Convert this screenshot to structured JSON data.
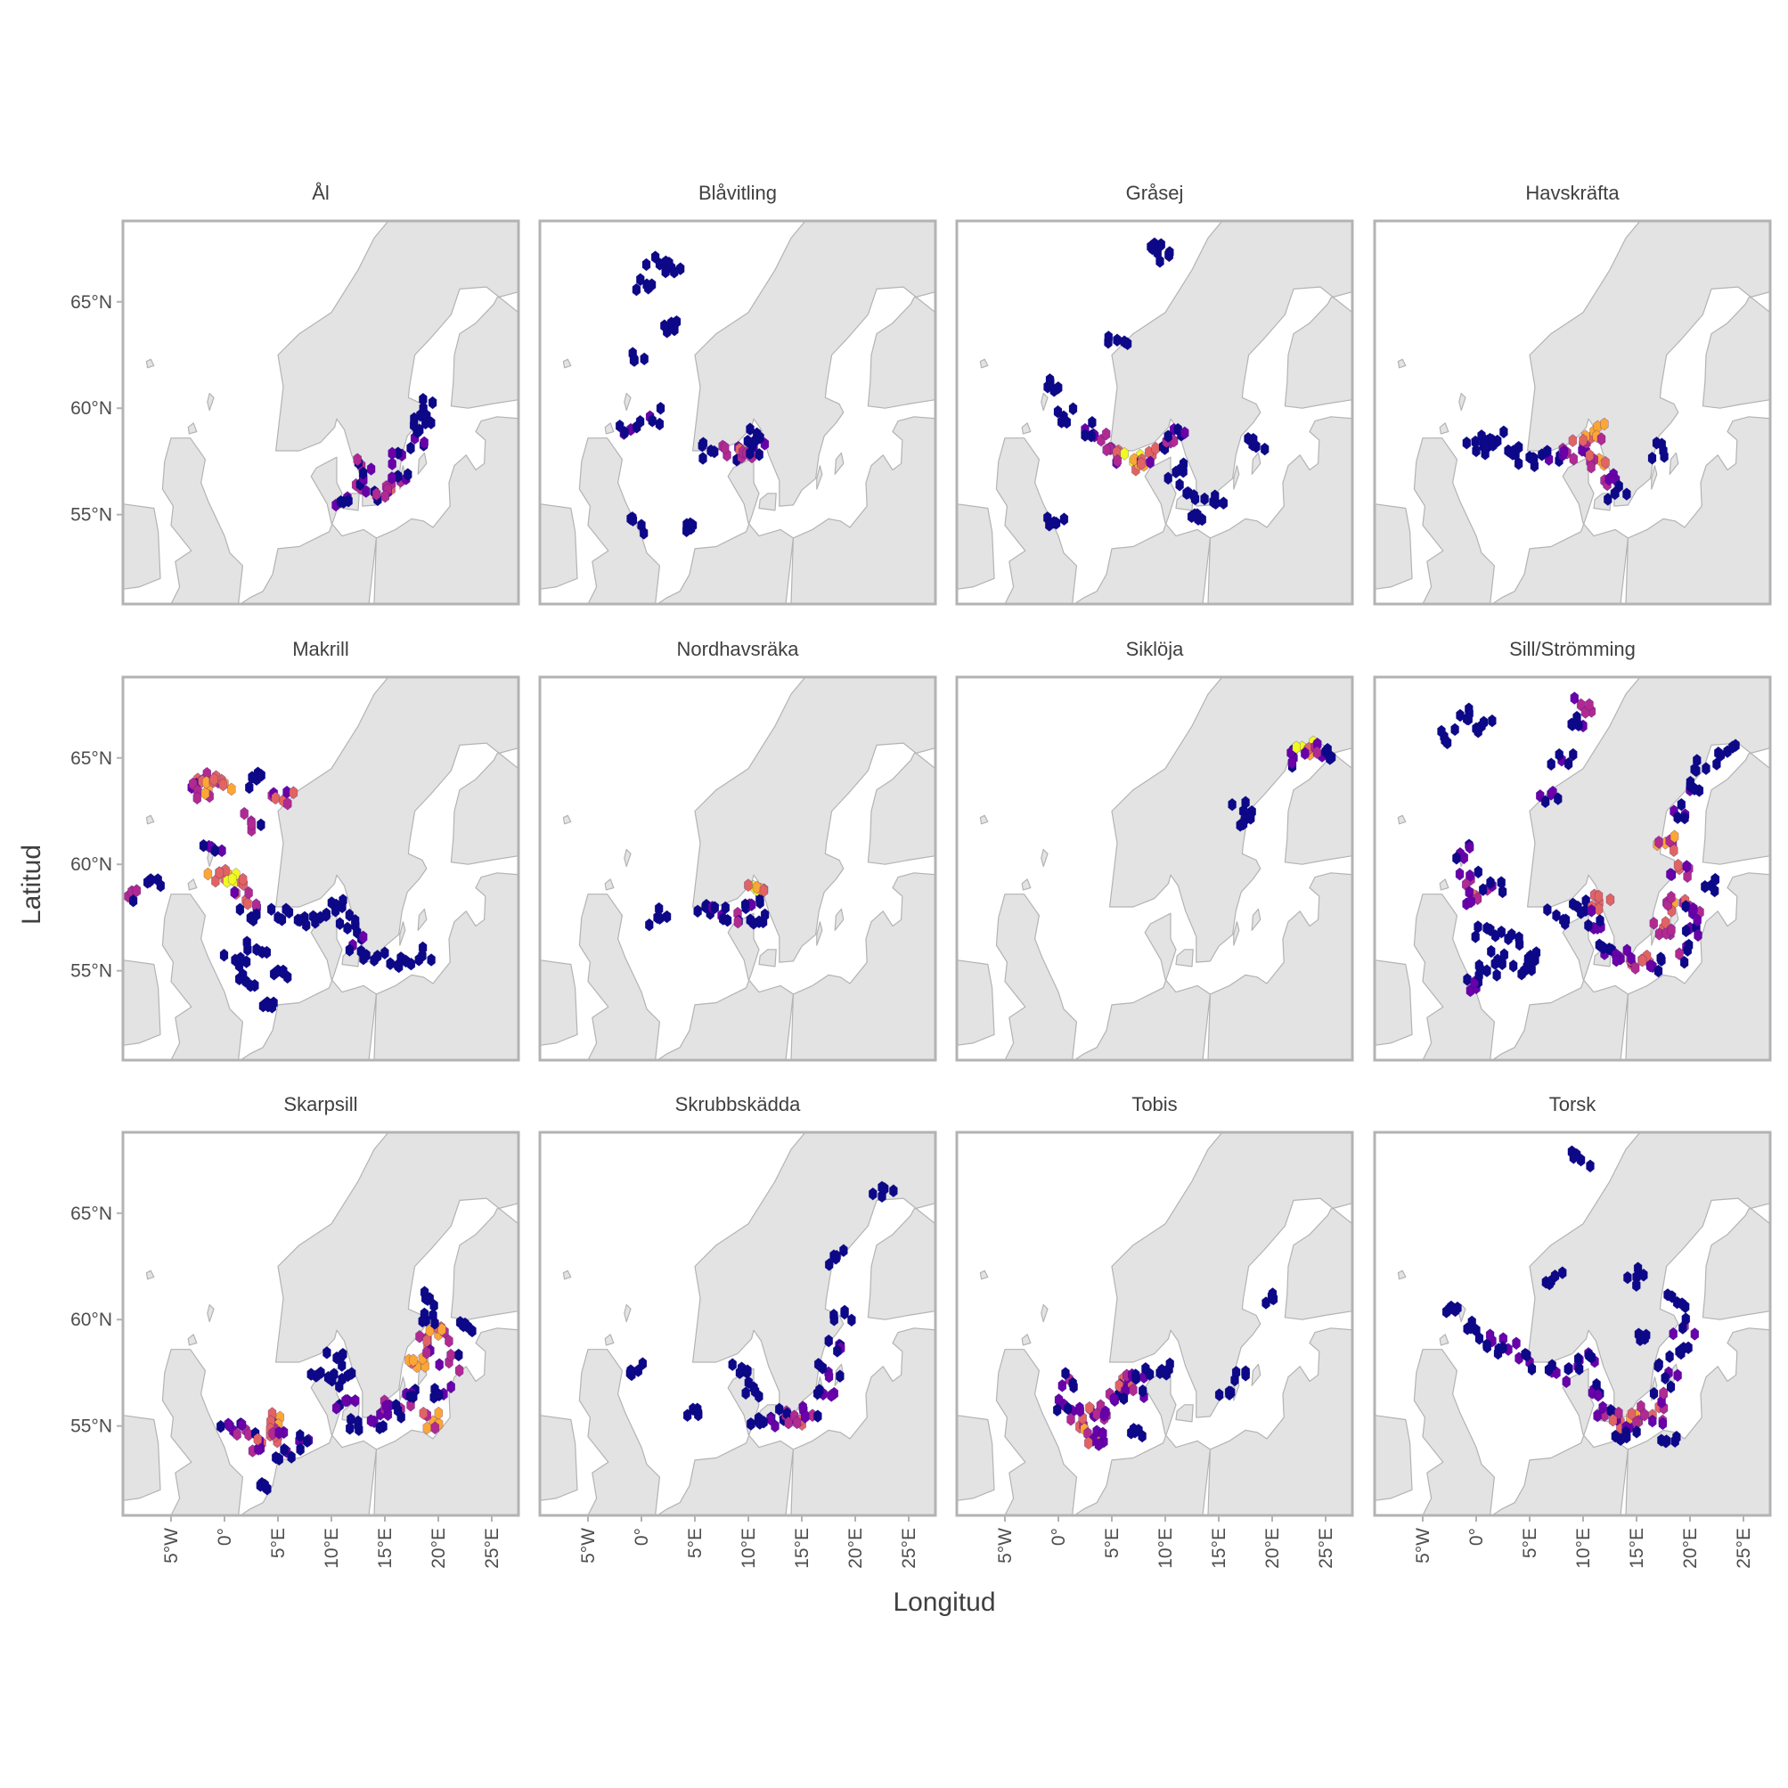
{
  "figure": {
    "xlabel": "Longitud",
    "ylabel": "Latitud",
    "colors": {
      "land": "#e3e3e3",
      "coast": "#b3b3b3",
      "frame": "#b3b3b3",
      "scale_low": "#0d0887",
      "scale_mid1": "#6a00a8",
      "scale_mid2": "#b12a90",
      "scale_mid3": "#e16462",
      "scale_mid4": "#fca636",
      "scale_high": "#f0f921"
    }
  },
  "chart_data": {
    "type": "faceted hexbin map",
    "x_range": [
      -9.5,
      27.5
    ],
    "y_range": [
      50.8,
      68.8
    ],
    "x_ticks": [
      {
        "value": -5,
        "label": "5°W"
      },
      {
        "value": 0,
        "label": "0°"
      },
      {
        "value": 5,
        "label": "5°E"
      },
      {
        "value": 10,
        "label": "10°E"
      },
      {
        "value": 15,
        "label": "15°E"
      },
      {
        "value": 20,
        "label": "20°E"
      },
      {
        "value": 25,
        "label": "25°E"
      }
    ],
    "y_ticks": [
      {
        "value": 55,
        "label": "55°N"
      },
      {
        "value": 60,
        "label": "60°N"
      },
      {
        "value": 65,
        "label": "65°N"
      }
    ],
    "color_scale": "plasma (low = dark blue, high = yellow)",
    "panels": [
      {
        "title": "Ål",
        "hotspots": [
          [
            11.5,
            55.8,
            1
          ],
          [
            12.3,
            56.4,
            2
          ],
          [
            12.8,
            57.3,
            2
          ],
          [
            14.2,
            55.9,
            2
          ],
          [
            15.6,
            56.2,
            3
          ],
          [
            16.2,
            56.8,
            2
          ],
          [
            16.6,
            57.8,
            1
          ],
          [
            17.8,
            58.6,
            1
          ],
          [
            18.8,
            59.3,
            0
          ],
          [
            18.6,
            60.0,
            0
          ]
        ]
      },
      {
        "title": "Blåvitling",
        "hotspots": [
          [
            0.5,
            65.8,
            0
          ],
          [
            1.3,
            67.1,
            0
          ],
          [
            2.8,
            66.6,
            0
          ],
          [
            2.8,
            64.0,
            0
          ],
          [
            -0.7,
            62.3,
            0
          ],
          [
            -1.0,
            59.0,
            1
          ],
          [
            0.8,
            59.6,
            1
          ],
          [
            0.0,
            54.5,
            0
          ],
          [
            4.8,
            54.5,
            0
          ],
          [
            6.5,
            58.0,
            0
          ],
          [
            8.0,
            57.8,
            2
          ],
          [
            9.5,
            58.0,
            4
          ],
          [
            10.5,
            58.2,
            1
          ],
          [
            10.8,
            58.8,
            0
          ]
        ]
      },
      {
        "title": "Gråsej",
        "hotspots": [
          [
            8.8,
            67.5,
            0
          ],
          [
            9.5,
            66.9,
            0
          ],
          [
            5.5,
            63.2,
            0
          ],
          [
            -1.0,
            61.0,
            0
          ],
          [
            0.5,
            59.6,
            0
          ],
          [
            2.5,
            59.0,
            1
          ],
          [
            4.0,
            58.5,
            2
          ],
          [
            5.5,
            57.7,
            3
          ],
          [
            7.0,
            57.5,
            5
          ],
          [
            8.8,
            57.8,
            3
          ],
          [
            10.5,
            58.4,
            2
          ],
          [
            10.8,
            59.0,
            1
          ],
          [
            11.0,
            57.0,
            0
          ],
          [
            12.0,
            56.0,
            0
          ],
          [
            13.0,
            55.0,
            0
          ],
          [
            14.5,
            55.6,
            0
          ],
          [
            18.5,
            58.2,
            0
          ],
          [
            -0.2,
            54.6,
            0
          ]
        ]
      },
      {
        "title": "Havskräfta",
        "hotspots": [
          [
            0.5,
            58.7,
            0
          ],
          [
            1.5,
            58.5,
            0
          ],
          [
            3.0,
            58.0,
            0
          ],
          [
            5.0,
            57.7,
            0
          ],
          [
            6.8,
            57.6,
            1
          ],
          [
            8.5,
            57.9,
            2
          ],
          [
            10.0,
            58.3,
            3
          ],
          [
            11.0,
            58.9,
            4
          ],
          [
            11.5,
            57.6,
            4
          ],
          [
            12.0,
            56.6,
            2
          ],
          [
            13.0,
            56.0,
            0
          ],
          [
            17.5,
            58.0,
            0
          ],
          [
            0.0,
            58.0,
            0
          ]
        ]
      },
      {
        "title": "Makrill",
        "hotspots": [
          [
            -9.0,
            58.5,
            2
          ],
          [
            -7.0,
            59.2,
            1
          ],
          [
            -2.5,
            64.0,
            3
          ],
          [
            -1.5,
            63.5,
            4
          ],
          [
            0.0,
            63.8,
            4
          ],
          [
            3.0,
            64.0,
            0
          ],
          [
            5.5,
            63.0,
            3
          ],
          [
            2.5,
            62.0,
            2
          ],
          [
            -1.2,
            60.8,
            1
          ],
          [
            -0.5,
            59.6,
            4
          ],
          [
            1.0,
            59.2,
            5
          ],
          [
            2.0,
            58.3,
            3
          ],
          [
            2.5,
            57.5,
            0
          ],
          [
            5.0,
            57.5,
            0
          ],
          [
            7.5,
            57.5,
            0
          ],
          [
            9.5,
            57.6,
            0
          ],
          [
            11.0,
            58.0,
            0
          ],
          [
            11.5,
            57.0,
            0
          ],
          [
            12.0,
            56.2,
            1
          ],
          [
            3.0,
            56.0,
            0
          ],
          [
            5.0,
            55.0,
            0
          ],
          [
            2.0,
            54.5,
            0
          ],
          [
            1.0,
            55.5,
            0
          ],
          [
            14.0,
            55.5,
            0
          ],
          [
            16.5,
            55.6,
            0
          ],
          [
            18.5,
            55.7,
            0
          ],
          [
            4.0,
            53.5,
            0
          ]
        ]
      },
      {
        "title": "Nordhavsräka",
        "hotspots": [
          [
            6.0,
            58.0,
            0
          ],
          [
            7.5,
            57.6,
            1
          ],
          [
            9.0,
            57.7,
            2
          ],
          [
            10.3,
            58.1,
            1
          ],
          [
            10.8,
            58.8,
            5
          ],
          [
            11.0,
            57.3,
            0
          ],
          [
            1.5,
            57.5,
            0
          ]
        ]
      },
      {
        "title": "Siklöja",
        "hotspots": [
          [
            22.0,
            65.0,
            1
          ],
          [
            22.8,
            65.5,
            5
          ],
          [
            24.0,
            65.5,
            2
          ],
          [
            25.0,
            65.3,
            0
          ],
          [
            17.3,
            62.5,
            0
          ],
          [
            17.3,
            61.9,
            0
          ]
        ]
      },
      {
        "title": "Sill/Strömming",
        "hotspots": [
          [
            -3.0,
            66.0,
            0
          ],
          [
            -1.5,
            67.0,
            0
          ],
          [
            0.5,
            66.5,
            0
          ],
          [
            9.8,
            67.5,
            2
          ],
          [
            10.0,
            66.5,
            1
          ],
          [
            8.0,
            64.9,
            1
          ],
          [
            7.0,
            63.3,
            1
          ],
          [
            -1.5,
            60.5,
            1
          ],
          [
            -0.5,
            59.3,
            2
          ],
          [
            0.0,
            58.5,
            3
          ],
          [
            1.5,
            59.0,
            1
          ],
          [
            1.0,
            57.0,
            0
          ],
          [
            3.0,
            56.5,
            0
          ],
          [
            2.0,
            55.5,
            0
          ],
          [
            4.5,
            55.0,
            0
          ],
          [
            0.0,
            54.2,
            1
          ],
          [
            1.0,
            55.0,
            0
          ],
          [
            5.5,
            55.5,
            0
          ],
          [
            7.5,
            57.6,
            0
          ],
          [
            9.5,
            58.0,
            0
          ],
          [
            11.5,
            58.2,
            3
          ],
          [
            11.0,
            57.0,
            1
          ],
          [
            12.0,
            55.8,
            1
          ],
          [
            13.5,
            55.6,
            3
          ],
          [
            15.5,
            55.5,
            3
          ],
          [
            17.5,
            57.0,
            3
          ],
          [
            18.5,
            58.2,
            4
          ],
          [
            20.0,
            58.0,
            2
          ],
          [
            22.0,
            59.0,
            0
          ],
          [
            19.0,
            59.8,
            3
          ],
          [
            17.7,
            61.0,
            4
          ],
          [
            18.5,
            62.5,
            1
          ],
          [
            20.0,
            63.5,
            1
          ],
          [
            21.5,
            64.5,
            0
          ],
          [
            23.5,
            65.3,
            0
          ],
          [
            16.5,
            55.2,
            1
          ],
          [
            19.0,
            55.8,
            2
          ],
          [
            20.0,
            57.0,
            1
          ]
        ]
      },
      {
        "title": "Skarpsill",
        "hotspots": [
          [
            0.5,
            55.0,
            1
          ],
          [
            2.0,
            54.8,
            2
          ],
          [
            3.5,
            54.2,
            3
          ],
          [
            4.5,
            55.2,
            4
          ],
          [
            5.0,
            54.5,
            3
          ],
          [
            5.8,
            53.8,
            1
          ],
          [
            7.0,
            54.3,
            1
          ],
          [
            3.5,
            52.3,
            0
          ],
          [
            9.0,
            57.5,
            0
          ],
          [
            10.5,
            58.2,
            0
          ],
          [
            11.0,
            57.2,
            0
          ],
          [
            11.5,
            56.2,
            1
          ],
          [
            12.5,
            55.2,
            0
          ],
          [
            14.0,
            55.2,
            1
          ],
          [
            15.0,
            55.8,
            2
          ],
          [
            16.5,
            55.8,
            2
          ],
          [
            17.0,
            56.5,
            1
          ],
          [
            18.0,
            57.8,
            4
          ],
          [
            19.0,
            58.8,
            3
          ],
          [
            20.0,
            59.3,
            4
          ],
          [
            21.0,
            58.0,
            2
          ],
          [
            20.5,
            56.5,
            1
          ],
          [
            19.5,
            55.2,
            4
          ],
          [
            18.8,
            61.0,
            0
          ],
          [
            19.5,
            60.2,
            0
          ],
          [
            22.5,
            59.8,
            0
          ]
        ]
      },
      {
        "title": "Skrubbskädda",
        "hotspots": [
          [
            -0.3,
            57.6,
            0
          ],
          [
            4.3,
            55.5,
            0
          ],
          [
            9.2,
            57.5,
            0
          ],
          [
            10.5,
            56.8,
            0
          ],
          [
            11.0,
            55.2,
            0
          ],
          [
            12.5,
            55.0,
            1
          ],
          [
            13.5,
            55.5,
            2
          ],
          [
            14.8,
            55.2,
            4
          ],
          [
            16.0,
            55.5,
            2
          ],
          [
            17.0,
            56.5,
            1
          ],
          [
            17.5,
            57.5,
            1
          ],
          [
            18.5,
            58.8,
            1
          ],
          [
            19.0,
            60.3,
            0
          ],
          [
            22.5,
            65.8,
            0
          ],
          [
            18.0,
            63.0,
            0
          ]
        ]
      },
      {
        "title": "Tobis",
        "hotspots": [
          [
            0.5,
            56.0,
            1
          ],
          [
            1.0,
            57.2,
            2
          ],
          [
            2.0,
            55.0,
            4
          ],
          [
            3.0,
            55.8,
            3
          ],
          [
            3.5,
            54.5,
            3
          ],
          [
            4.5,
            55.5,
            2
          ],
          [
            4.8,
            56.5,
            2
          ],
          [
            6.0,
            57.2,
            3
          ],
          [
            7.0,
            56.7,
            2
          ],
          [
            8.0,
            57.3,
            1
          ],
          [
            9.5,
            57.5,
            0
          ],
          [
            7.5,
            54.8,
            0
          ],
          [
            20.0,
            61.0,
            0
          ],
          [
            17.5,
            57.5,
            0
          ],
          [
            16.0,
            56.5,
            0
          ]
        ]
      },
      {
        "title": "Torsk",
        "hotspots": [
          [
            -2.5,
            60.5,
            0
          ],
          [
            0.0,
            59.5,
            0
          ],
          [
            1.5,
            59.0,
            1
          ],
          [
            3.0,
            58.6,
            1
          ],
          [
            5.0,
            58.0,
            1
          ],
          [
            7.5,
            57.5,
            1
          ],
          [
            9.5,
            57.8,
            1
          ],
          [
            10.5,
            58.4,
            1
          ],
          [
            11.0,
            56.7,
            1
          ],
          [
            12.0,
            55.5,
            2
          ],
          [
            13.5,
            55.2,
            3
          ],
          [
            15.0,
            55.5,
            4
          ],
          [
            16.5,
            55.5,
            3
          ],
          [
            17.5,
            56.5,
            2
          ],
          [
            18.0,
            57.5,
            1
          ],
          [
            19.0,
            58.5,
            0
          ],
          [
            19.5,
            59.7,
            2
          ],
          [
            18.8,
            60.8,
            0
          ],
          [
            9.8,
            67.5,
            0
          ],
          [
            15.0,
            62.0,
            0
          ],
          [
            15.5,
            59.2,
            0
          ],
          [
            17.8,
            54.3,
            0
          ],
          [
            14.0,
            54.7,
            0
          ],
          [
            7.0,
            61.8,
            0
          ]
        ]
      }
    ]
  }
}
